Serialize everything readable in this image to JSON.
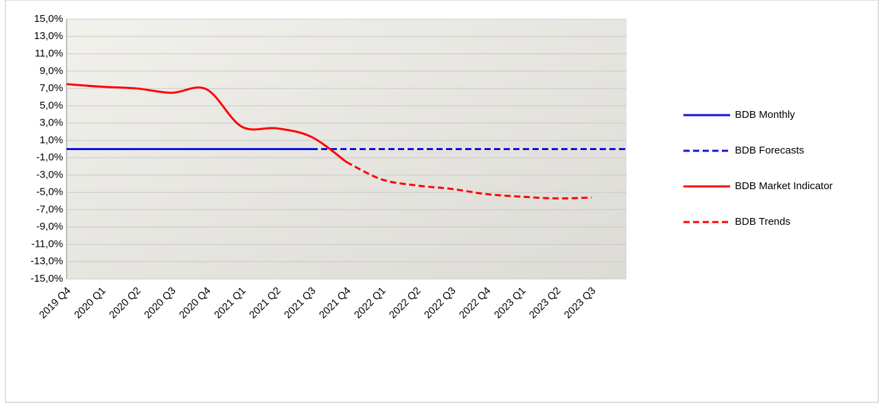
{
  "chart_data": {
    "type": "line",
    "categories": [
      "2019 Q4",
      "2020 Q1",
      "2020 Q2",
      "2020 Q3",
      "2020 Q4",
      "2021 Q1",
      "2021 Q2",
      "2021 Q3",
      "2021 Q4",
      "2022 Q1",
      "2022 Q2",
      "2022 Q3",
      "2022 Q4",
      "2023 Q1",
      "2023 Q2",
      "2023 Q3",
      null
    ],
    "series": [
      {
        "name": "BDB Monthly",
        "color": "#1010e0",
        "dashed": false,
        "values": [
          0,
          0,
          0,
          0,
          0,
          0,
          0,
          0,
          null,
          null,
          null,
          null,
          null,
          null,
          null,
          null,
          null
        ]
      },
      {
        "name": "BDB Forecasts",
        "color": "#1010e0",
        "dashed": true,
        "values": [
          null,
          null,
          null,
          null,
          null,
          null,
          null,
          0,
          0,
          0,
          0,
          0,
          0,
          0,
          0,
          0,
          0
        ]
      },
      {
        "name": "BDB Market Indicator",
        "color": "#ff0000",
        "dashed": false,
        "values": [
          7.5,
          7.2,
          7.0,
          6.5,
          6.9,
          2.6,
          2.4,
          1.4,
          -1.5,
          null,
          null,
          null,
          null,
          null,
          null,
          null,
          null
        ]
      },
      {
        "name": "BDB Trends",
        "color": "#ff0000",
        "dashed": true,
        "values": [
          null,
          null,
          null,
          null,
          null,
          null,
          null,
          null,
          -1.5,
          -3.5,
          -4.2,
          -4.6,
          -5.2,
          -5.5,
          -5.7,
          -5.6,
          null
        ]
      }
    ],
    "ylim": [
      -15,
      15
    ],
    "yticks": [
      {
        "value": 15,
        "label": "15,0%"
      },
      {
        "value": 13,
        "label": "13,0%"
      },
      {
        "value": 11,
        "label": "11,0%"
      },
      {
        "value": 9,
        "label": "9,0%"
      },
      {
        "value": 7,
        "label": "7,0%"
      },
      {
        "value": 5,
        "label": "5,0%"
      },
      {
        "value": 3,
        "label": "3,0%"
      },
      {
        "value": 1,
        "label": "1,0%"
      },
      {
        "value": -1,
        "label": "-1,0%"
      },
      {
        "value": -3,
        "label": "-3,0%"
      },
      {
        "value": -5,
        "label": "-5,0%"
      },
      {
        "value": -7,
        "label": "-7,0%"
      },
      {
        "value": -9,
        "label": "-9,0%"
      },
      {
        "value": -11,
        "label": "-11,0%"
      },
      {
        "value": -13,
        "label": "-13,0%"
      },
      {
        "value": -15,
        "label": "-15,0%"
      }
    ],
    "grid": true,
    "legend": "right"
  }
}
